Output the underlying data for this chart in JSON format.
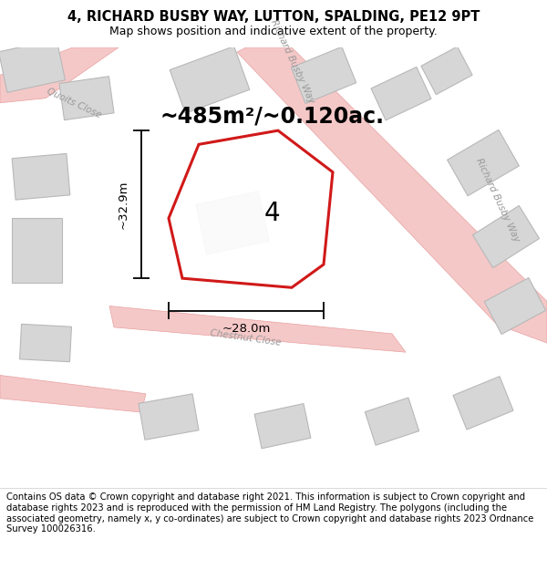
{
  "title_line1": "4, RICHARD BUSBY WAY, LUTTON, SPALDING, PE12 9PT",
  "title_line2": "Map shows position and indicative extent of the property.",
  "area_text": "~485m²/~0.120ac.",
  "label_number": "4",
  "dim_width": "~28.0m",
  "dim_height": "~32.9m",
  "footer_text": "Contains OS data © Crown copyright and database right 2021. This information is subject to Crown copyright and database rights 2023 and is reproduced with the permission of HM Land Registry. The polygons (including the associated geometry, namely x, y co-ordinates) are subject to Crown copyright and database rights 2023 Ordnance Survey 100026316.",
  "map_bg": "#f2f1ef",
  "road_fill": "#f5c8c8",
  "road_edge": "#e8a0a0",
  "plot_line_color": "#cc0000",
  "building_color": "#d6d6d6",
  "building_outline": "#b8b8b8",
  "dim_line_color": "#111111",
  "street_label_color": "#999999",
  "title_fontsize": 10.5,
  "subtitle_fontsize": 9.0,
  "area_fontsize": 17,
  "number_fontsize": 20,
  "dim_fontsize": 9.5,
  "footer_fontsize": 7.2,
  "street_label_fontsize": 7.5
}
